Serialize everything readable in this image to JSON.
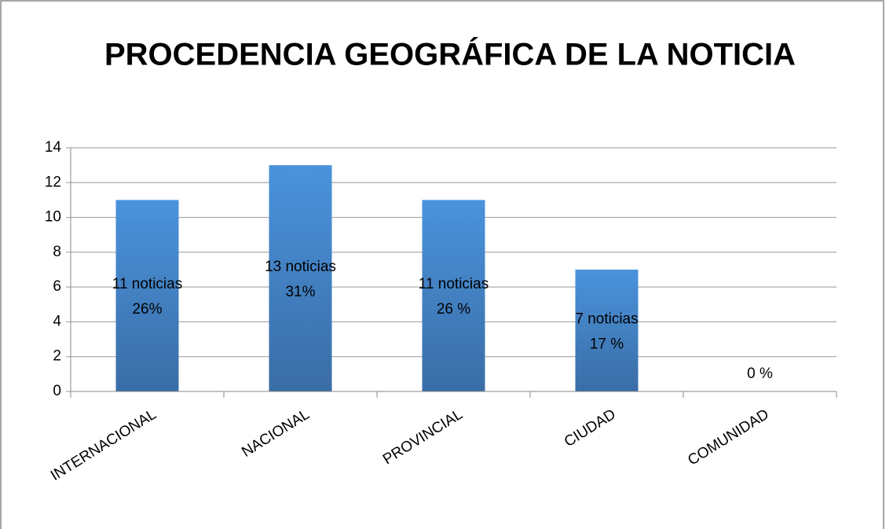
{
  "chart_data": {
    "type": "bar",
    "title": "PROCEDENCIA GEOGRÁFICA DE LA NOTICIA",
    "categories": [
      "INTERNACIONAL",
      "NACIONAL",
      "PROVINCIAL",
      "CIUDAD",
      "COMUNIDAD"
    ],
    "values": [
      11,
      13,
      11,
      7,
      0
    ],
    "value_labels": [
      "11 noticias",
      "13 noticias",
      "11 noticias",
      "7 noticias",
      null
    ],
    "percent_labels": [
      "26%",
      "31%",
      "26 %",
      "17 %",
      "0 %"
    ],
    "color": "#4a8fd6",
    "ylim": [
      0,
      14
    ],
    "yticks": [
      0,
      2,
      4,
      6,
      8,
      10,
      12,
      14
    ],
    "grid": true
  }
}
